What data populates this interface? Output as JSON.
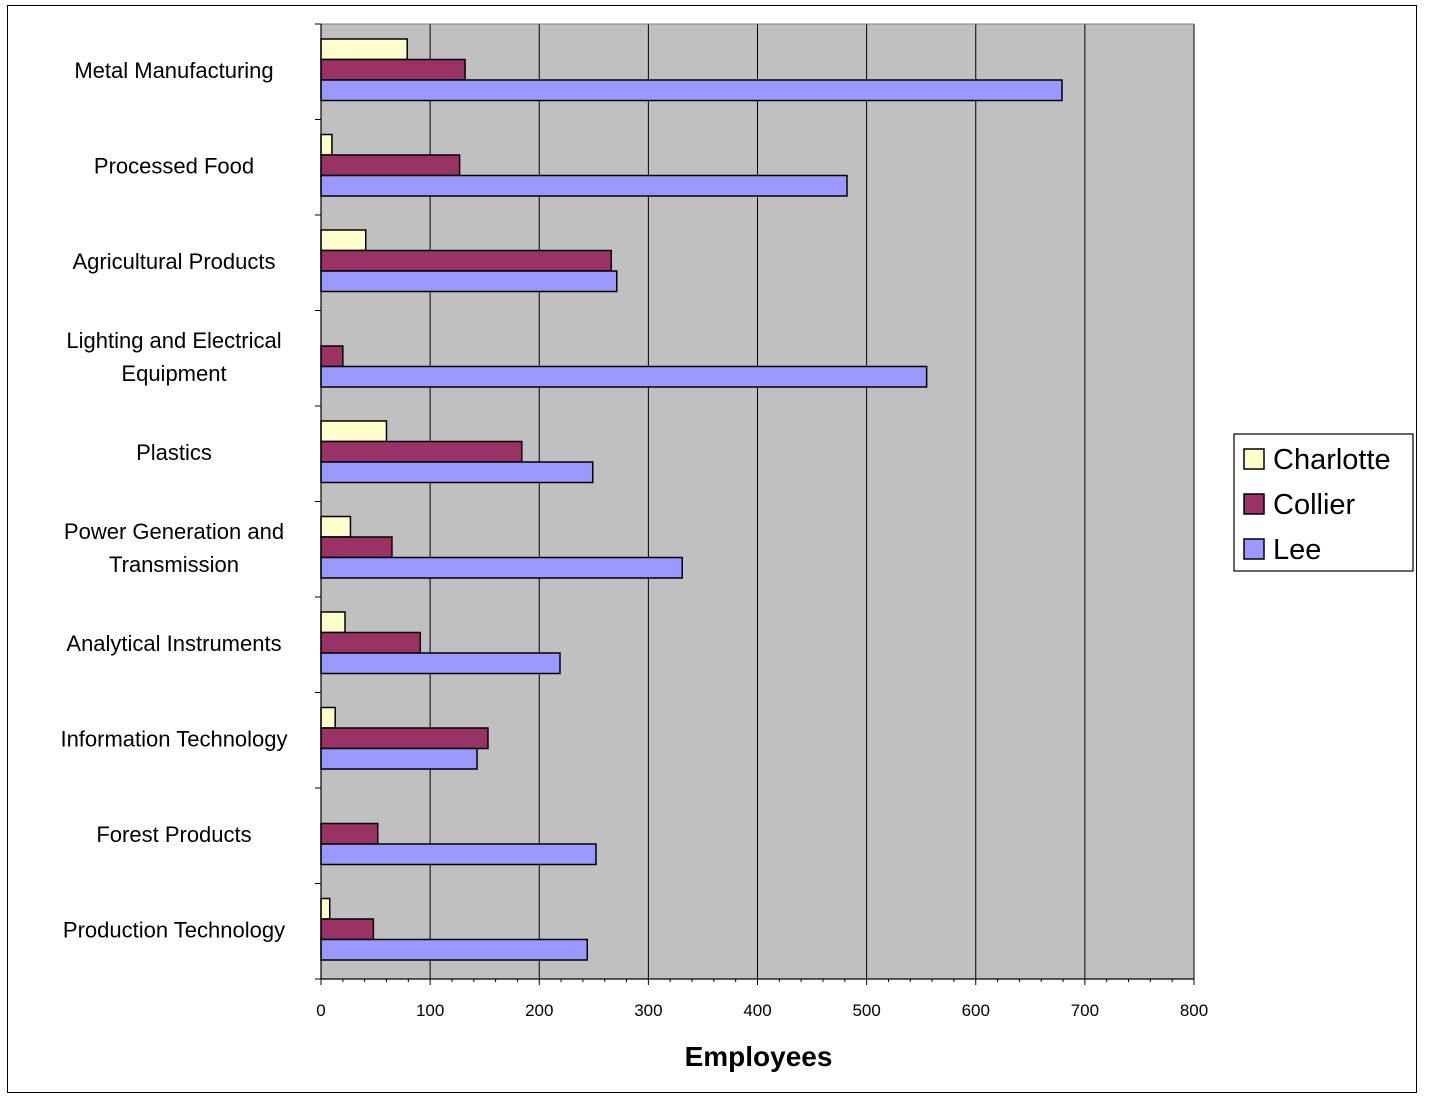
{
  "chart_data": {
    "type": "bar",
    "orientation": "horizontal",
    "categories": [
      [
        "Metal Manufacturing"
      ],
      [
        "Processed Food"
      ],
      [
        "Agricultural Products"
      ],
      [
        "Lighting and Electrical",
        "Equipment"
      ],
      [
        "Plastics"
      ],
      [
        "Power Generation and",
        "Transmission"
      ],
      [
        "Analytical Instruments"
      ],
      [
        "Information Technology"
      ],
      [
        "Forest Products"
      ],
      [
        "Production Technology"
      ]
    ],
    "series": [
      {
        "name": "Charlotte",
        "color": "#ffffcc",
        "values": [
          79,
          10,
          41,
          0,
          60,
          27,
          22,
          13,
          0,
          8
        ]
      },
      {
        "name": "Collier",
        "color": "#993366",
        "values": [
          132,
          127,
          266,
          20,
          184,
          65,
          91,
          153,
          52,
          48
        ]
      },
      {
        "name": "Lee",
        "color": "#9999ff",
        "values": [
          679,
          482,
          271,
          555,
          249,
          331,
          219,
          143,
          252,
          244
        ]
      }
    ],
    "xlabel": "Employees",
    "ylabel": "",
    "xlim": [
      0,
      800
    ],
    "xticks": [
      0,
      100,
      200,
      300,
      400,
      500,
      600,
      700,
      800
    ],
    "grid": "vertical",
    "plot_background": "#c0c0c0",
    "legend": "right"
  }
}
